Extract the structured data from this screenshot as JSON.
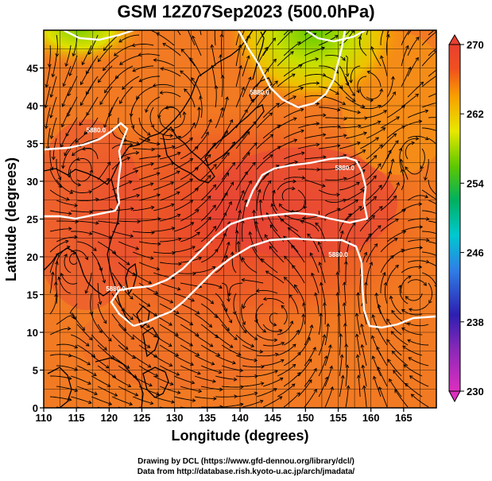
{
  "title": "GSM 12Z07Sep2023 (500.0hPa)",
  "x_axis": {
    "label": "Longitude (degrees)",
    "range": [
      110,
      170
    ],
    "ticks": [
      110,
      115,
      120,
      125,
      130,
      135,
      140,
      145,
      150,
      155,
      160,
      165
    ]
  },
  "y_axis": {
    "label": "Latitude  (degrees)",
    "range": [
      0,
      50
    ],
    "ticks": [
      0,
      5,
      10,
      15,
      20,
      25,
      30,
      35,
      40,
      45
    ]
  },
  "colorbar": {
    "min": 230,
    "max": 270,
    "ticks": [
      230,
      238,
      246,
      254,
      262,
      270
    ],
    "colors": [
      "#dd2fbf",
      "#2d1fb0",
      "#2f7fe6",
      "#00c8d0",
      "#00b060",
      "#5ec800",
      "#e8e800",
      "#f8a000",
      "#f05020",
      "#e84030"
    ]
  },
  "contours": [
    {
      "label": "5880.0",
      "label_pos": [
        118,
        36.5
      ]
    },
    {
      "label": "5880.0",
      "label_pos": [
        143,
        41.5
      ]
    },
    {
      "label": "5880.0",
      "label_pos": [
        156,
        31.5
      ]
    },
    {
      "label": "5880.0",
      "label_pos": [
        155,
        20
      ]
    },
    {
      "label": "5880.0",
      "label_pos": [
        121,
        15.5
      ]
    }
  ],
  "credits": {
    "line1": "Drawing by DCL (https://www.gfd-dennou.org/library/dcl/)",
    "line2": "Data from http://database.rish.kyoto-u.ac.jp/arch/jmadata/"
  }
}
